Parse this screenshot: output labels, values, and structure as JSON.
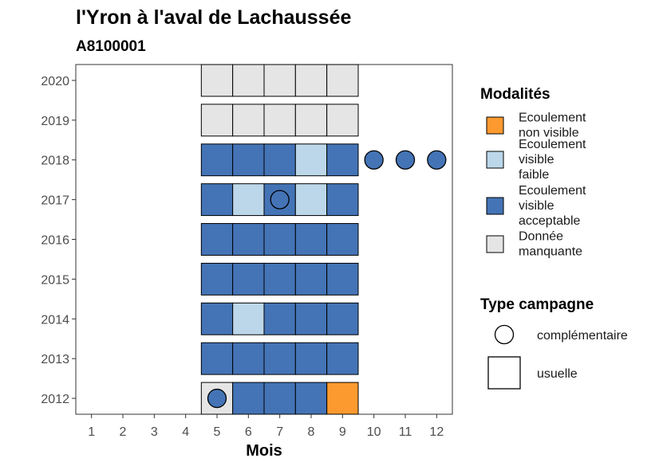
{
  "chart_data": {
    "type": "heatmap",
    "title": "l'Yron à l'aval de Lachaussée",
    "subtitle": "A8100001",
    "xlabel": "Mois",
    "ylabel": "",
    "x_ticks": [
      1,
      2,
      3,
      4,
      5,
      6,
      7,
      8,
      9,
      10,
      11,
      12
    ],
    "y_ticks": [
      2012,
      2013,
      2014,
      2015,
      2016,
      2017,
      2018,
      2019,
      2020
    ],
    "xlim": [
      0.5,
      12.5
    ],
    "ylim": [
      2011.6,
      2020.4
    ],
    "grid": false,
    "legend_position": "right",
    "modalites": [
      {
        "key": "nv",
        "label": [
          "Ecoulement",
          "non visible"
        ],
        "color": "#fd9a2f"
      },
      {
        "key": "vf",
        "label": [
          "Ecoulement",
          "visible",
          "faible"
        ],
        "color": "#bcd7e9"
      },
      {
        "key": "va",
        "label": [
          "Ecoulement",
          "visible",
          "acceptable"
        ],
        "color": "#4474b6"
      },
      {
        "key": "dm",
        "label": [
          "Donnée",
          "manquante"
        ],
        "color": "#e5e5e5"
      }
    ],
    "campagnes": [
      {
        "key": "complementaire",
        "label": "complémentaire",
        "shape": "circle"
      },
      {
        "key": "usuelle",
        "label": "usuelle",
        "shape": "square"
      }
    ],
    "legend_titles": {
      "modalites": "Modalités",
      "campagne": "Type campagne"
    },
    "usuelle": [
      {
        "year": 2012,
        "months": [
          "dm",
          "va",
          "va",
          "va",
          "nv"
        ]
      },
      {
        "year": 2013,
        "months": [
          "va",
          "va",
          "va",
          "va",
          "va"
        ]
      },
      {
        "year": 2014,
        "months": [
          "va",
          "vf",
          "va",
          "va",
          "va"
        ]
      },
      {
        "year": 2015,
        "months": [
          "va",
          "va",
          "va",
          "va",
          "va"
        ]
      },
      {
        "year": 2016,
        "months": [
          "va",
          "va",
          "va",
          "va",
          "va"
        ]
      },
      {
        "year": 2017,
        "months": [
          "va",
          "vf",
          "va",
          "vf",
          "va"
        ]
      },
      {
        "year": 2018,
        "months": [
          "va",
          "va",
          "va",
          "vf",
          "va"
        ]
      },
      {
        "year": 2019,
        "months": [
          "dm",
          "dm",
          "dm",
          "dm",
          "dm"
        ]
      },
      {
        "year": 2020,
        "months": [
          "dm",
          "dm",
          "dm",
          "dm",
          "dm"
        ]
      }
    ],
    "usuelle_first_month": 5,
    "complementaire": [
      {
        "year": 2012,
        "month": 5,
        "mod": "va"
      },
      {
        "year": 2017,
        "month": 7,
        "mod": "va"
      },
      {
        "year": 2018,
        "month": 10,
        "mod": "va"
      },
      {
        "year": 2018,
        "month": 11,
        "mod": "va"
      },
      {
        "year": 2018,
        "month": 12,
        "mod": "va"
      }
    ]
  }
}
